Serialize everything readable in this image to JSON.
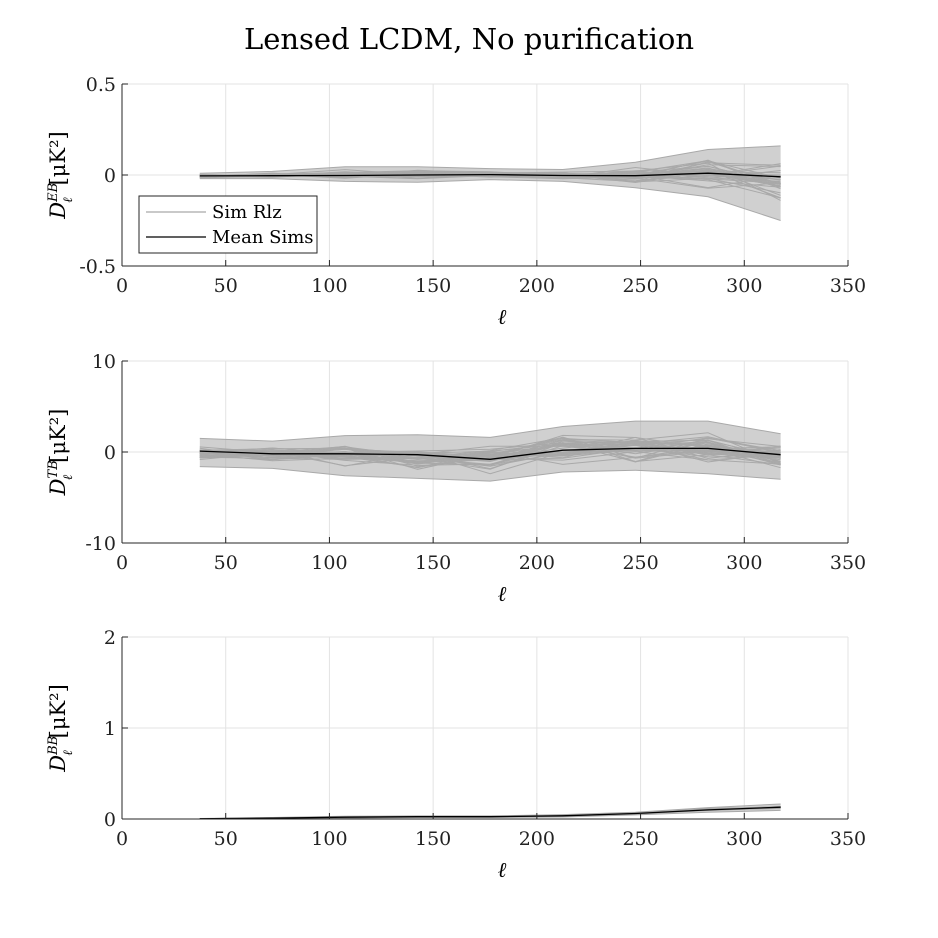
{
  "title": "Lensed LCDM, No purification",
  "colors": {
    "sims": "#a9a9a9",
    "mean": "#000000",
    "grid": "#e3e3e3",
    "axis": "#262626"
  },
  "chart_data": [
    {
      "type": "line",
      "ylabel_main": "D",
      "ylabel_sup": "EB",
      "ylabel_sub": "ℓ",
      "ylabel_unit": "[μK²]",
      "xlabel": "ℓ",
      "xlim": [
        0,
        350
      ],
      "ylim": [
        -0.5,
        0.5
      ],
      "xticks": [
        0,
        50,
        100,
        150,
        200,
        250,
        300,
        350
      ],
      "yticks": [
        -0.5,
        0,
        0.5
      ],
      "ytick_labels": [
        "-0.5",
        "0",
        "0.5"
      ],
      "grid": true,
      "legend": {
        "position": "middle-left",
        "entries": [
          "Sim Rlz",
          "Mean Sims"
        ]
      },
      "x": [
        37.5,
        72.5,
        107.5,
        142.5,
        177.5,
        212.5,
        247.5,
        282.5,
        317.5
      ],
      "mean": [
        -0.005,
        -0.004,
        -0.003,
        0.0,
        0.002,
        -0.003,
        -0.004,
        0.01,
        -0.01
      ],
      "band_low": [
        -0.02,
        -0.02,
        -0.035,
        -0.04,
        -0.025,
        -0.035,
        -0.07,
        -0.12,
        -0.25
      ],
      "band_high": [
        0.01,
        0.02,
        0.045,
        0.045,
        0.035,
        0.03,
        0.07,
        0.14,
        0.16
      ]
    },
    {
      "type": "line",
      "ylabel_main": "D",
      "ylabel_sup": "TB",
      "ylabel_sub": "ℓ",
      "ylabel_unit": "[μK²]",
      "xlabel": "ℓ",
      "xlim": [
        0,
        350
      ],
      "ylim": [
        -10,
        10
      ],
      "xticks": [
        0,
        50,
        100,
        150,
        200,
        250,
        300,
        350
      ],
      "yticks": [
        -10,
        0,
        10
      ],
      "ytick_labels": [
        "-10",
        "0",
        "10"
      ],
      "grid": true,
      "x": [
        37.5,
        72.5,
        107.5,
        142.5,
        177.5,
        212.5,
        247.5,
        282.5,
        317.5
      ],
      "mean": [
        0.1,
        -0.2,
        -0.2,
        -0.3,
        -0.8,
        0.2,
        0.4,
        0.4,
        -0.3
      ],
      "band_low": [
        -1.6,
        -1.8,
        -2.6,
        -2.9,
        -3.2,
        -2.2,
        -2.0,
        -2.4,
        -3.0
      ],
      "band_high": [
        1.5,
        1.2,
        1.8,
        1.9,
        1.6,
        2.8,
        3.4,
        3.4,
        2.0
      ]
    },
    {
      "type": "line",
      "ylabel_main": "D",
      "ylabel_sup": "BB",
      "ylabel_sub": "ℓ",
      "ylabel_unit": "[μK²]",
      "xlabel": "ℓ",
      "xlim": [
        0,
        350
      ],
      "ylim": [
        0,
        2
      ],
      "xticks": [
        0,
        50,
        100,
        150,
        200,
        250,
        300,
        350
      ],
      "yticks": [
        0,
        1,
        2
      ],
      "ytick_labels": [
        "0",
        "1",
        "2"
      ],
      "grid": true,
      "x": [
        37.5,
        72.5,
        107.5,
        142.5,
        177.5,
        212.5,
        247.5,
        282.5,
        317.5
      ],
      "mean": [
        0.002,
        0.01,
        0.02,
        0.025,
        0.025,
        0.035,
        0.06,
        0.1,
        0.13
      ],
      "band_low": [
        0.0,
        0.004,
        0.01,
        0.016,
        0.016,
        0.022,
        0.045,
        0.075,
        0.095
      ],
      "band_high": [
        0.006,
        0.016,
        0.03,
        0.034,
        0.034,
        0.048,
        0.075,
        0.125,
        0.165
      ]
    }
  ]
}
